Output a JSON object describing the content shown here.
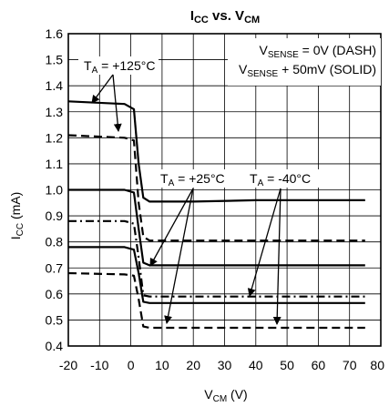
{
  "chart_data": {
    "type": "line",
    "title_parts": {
      "main1": "I",
      "sub1": "CC",
      "mid": " vs. V",
      "sub2": "CM"
    },
    "xlabel_parts": {
      "main": "V",
      "sub": "CM",
      "unit": " (V)"
    },
    "ylabel_parts": {
      "main": "I",
      "sub": "CC",
      "unit": " (mA)"
    },
    "xlim": [
      -20,
      80
    ],
    "ylim": [
      0.4,
      1.6
    ],
    "x_ticks": [
      -20,
      -10,
      0,
      10,
      20,
      30,
      40,
      50,
      60,
      70,
      80
    ],
    "x_tick_labels": [
      "-20",
      "-10",
      "0",
      "10",
      "20",
      "30",
      "40",
      "50",
      "60",
      "70",
      "80"
    ],
    "y_ticks": [
      0.4,
      0.5,
      0.6,
      0.7,
      0.8,
      0.9,
      1.0,
      1.1,
      1.2,
      1.3,
      1.4,
      1.5,
      1.6
    ],
    "y_tick_labels": [
      "0.4",
      "0.5",
      "0.6",
      "0.7",
      "0.8",
      "0.9",
      "1.0",
      "1.1",
      "1.2",
      "1.3",
      "1.4",
      "1.5",
      "1.6"
    ],
    "grid": true,
    "legend": {
      "line1": {
        "main": "V",
        "sub": "SENSE",
        "rest": " = 0V (DASH)"
      },
      "line2": {
        "main": "V",
        "sub": "SENSE",
        "rest": " + 50mV (SOLID)"
      }
    },
    "annotations": [
      {
        "main": "T",
        "sub": "A",
        "rest": " = +125°C"
      },
      {
        "main": "T",
        "sub": "A",
        "rest": " = +25°C"
      },
      {
        "main": "T",
        "sub": "A",
        "rest": " = -40°C"
      }
    ],
    "series": [
      {
        "style": "solid",
        "x": [
          -20,
          -2,
          1,
          2.5,
          4,
          6,
          20,
          40,
          60,
          75
        ],
        "y": [
          1.34,
          1.33,
          1.31,
          1.1,
          0.97,
          0.955,
          0.955,
          0.96,
          0.96,
          0.96
        ]
      },
      {
        "style": "dashed",
        "x": [
          -20,
          -2,
          1,
          2.5,
          4,
          6,
          20,
          40,
          60,
          75
        ],
        "y": [
          1.21,
          1.2,
          1.19,
          0.95,
          0.82,
          0.805,
          0.805,
          0.805,
          0.805,
          0.805
        ]
      },
      {
        "style": "solid",
        "x": [
          -20,
          -2,
          1,
          2.5,
          4,
          6,
          20,
          40,
          60,
          75
        ],
        "y": [
          1.0,
          1.0,
          0.99,
          0.85,
          0.72,
          0.71,
          0.71,
          0.71,
          0.71,
          0.71
        ]
      },
      {
        "style": "dashdot",
        "x": [
          -20,
          -2,
          1,
          2.5,
          4,
          6,
          20,
          40,
          60,
          75
        ],
        "y": [
          0.88,
          0.88,
          0.87,
          0.74,
          0.595,
          0.59,
          0.59,
          0.59,
          0.59,
          0.59
        ]
      },
      {
        "style": "solid",
        "x": [
          -20,
          -2,
          1,
          2.5,
          4,
          6,
          20,
          40,
          60,
          75
        ],
        "y": [
          0.78,
          0.78,
          0.77,
          0.68,
          0.57,
          0.565,
          0.565,
          0.565,
          0.565,
          0.565
        ]
      },
      {
        "style": "dashed",
        "x": [
          -20,
          -2,
          1,
          2.5,
          4,
          6,
          20,
          40,
          60,
          75
        ],
        "y": [
          0.68,
          0.675,
          0.67,
          0.58,
          0.475,
          0.47,
          0.47,
          0.47,
          0.47,
          0.47
        ]
      }
    ]
  }
}
